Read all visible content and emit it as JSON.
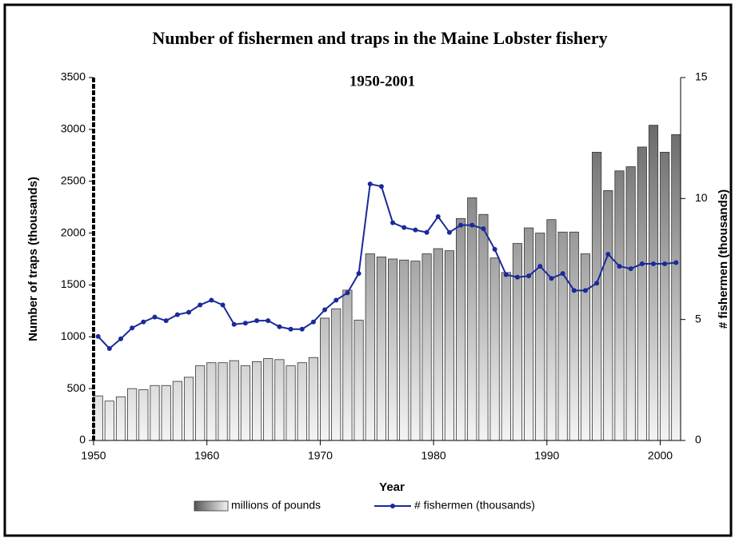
{
  "chart_data": {
    "type": "bar_line",
    "title": "Number of fishermen and traps in the Maine Lobster fishery",
    "subtitle": "1950-2001",
    "xlabel": "Year",
    "ylabel": "Number of traps (thousands)",
    "y2label": "# fishermen (thousands)",
    "x": [
      1950,
      1951,
      1952,
      1953,
      1954,
      1955,
      1956,
      1957,
      1958,
      1959,
      1960,
      1961,
      1962,
      1963,
      1964,
      1965,
      1966,
      1967,
      1968,
      1969,
      1970,
      1971,
      1972,
      1973,
      1974,
      1975,
      1976,
      1977,
      1978,
      1979,
      1980,
      1981,
      1982,
      1983,
      1984,
      1985,
      1986,
      1987,
      1988,
      1989,
      1990,
      1991,
      1992,
      1993,
      1994,
      1995,
      1996,
      1997,
      1998,
      1999,
      2000,
      2001
    ],
    "xlim": [
      1950,
      2001.8
    ],
    "xticks": [
      1950,
      1960,
      1970,
      1980,
      1990,
      2000
    ],
    "ylim": [
      0,
      3500
    ],
    "yticks": [
      0,
      500,
      1000,
      1500,
      2000,
      2500,
      3000,
      3500
    ],
    "y2lim": [
      0,
      15
    ],
    "y2ticks": [
      0,
      5,
      10,
      15
    ],
    "legend": "bottom",
    "series": [
      {
        "name": "millions of pounds",
        "type": "bar",
        "color": "#555555",
        "values": [
          430,
          380,
          420,
          500,
          490,
          530,
          530,
          570,
          610,
          720,
          750,
          750,
          770,
          720,
          760,
          790,
          780,
          720,
          750,
          800,
          1180,
          1270,
          1450,
          1160,
          1800,
          1770,
          1750,
          1740,
          1730,
          1800,
          1850,
          1830,
          2140,
          2340,
          2180,
          1760,
          1620,
          1900,
          2050,
          2000,
          2130,
          2010,
          2010,
          1800,
          2780,
          2410,
          2600,
          2640,
          2830,
          3040,
          2780,
          2950
        ]
      },
      {
        "name": "# fishermen (thousands)",
        "type": "line",
        "axis": "y2",
        "color": "#1a2a9a",
        "values": [
          4.3,
          3.8,
          4.2,
          4.65,
          4.9,
          5.1,
          4.95,
          5.2,
          5.3,
          5.6,
          5.8,
          5.6,
          4.8,
          4.85,
          4.95,
          4.95,
          4.7,
          4.6,
          4.6,
          4.9,
          5.4,
          5.8,
          6.1,
          6.9,
          10.6,
          10.5,
          9.0,
          8.8,
          8.7,
          8.6,
          9.25,
          8.6,
          8.9,
          8.9,
          8.75,
          7.9,
          6.85,
          6.75,
          6.8,
          7.2,
          6.7,
          6.9,
          6.2,
          6.2,
          6.5,
          7.7,
          7.2,
          7.1,
          7.3,
          7.3,
          7.3,
          7.35
        ]
      }
    ]
  }
}
